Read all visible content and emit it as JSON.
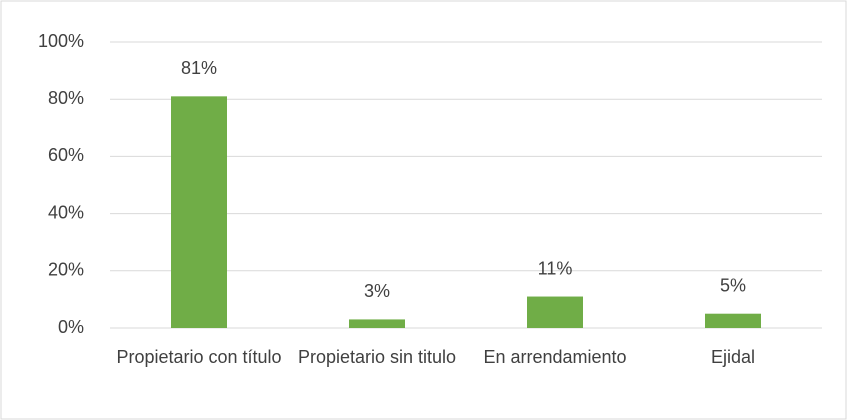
{
  "chart_data": {
    "type": "bar",
    "categories": [
      "Propietario con título",
      "Propietario sin titulo",
      "En arrendamiento",
      "Ejidal"
    ],
    "values": [
      81,
      3,
      11,
      5
    ],
    "value_labels": [
      "81%",
      "3%",
      "11%",
      "5%"
    ],
    "color": "#70ad47",
    "ylim": [
      0,
      100
    ],
    "yticks": [
      {
        "value": 0,
        "label": "0%"
      },
      {
        "value": 20,
        "label": "20%"
      },
      {
        "value": 40,
        "label": "40%"
      },
      {
        "value": 60,
        "label": "60%"
      },
      {
        "value": 80,
        "label": "80%"
      },
      {
        "value": 100,
        "label": "100%"
      }
    ],
    "grid": true
  }
}
